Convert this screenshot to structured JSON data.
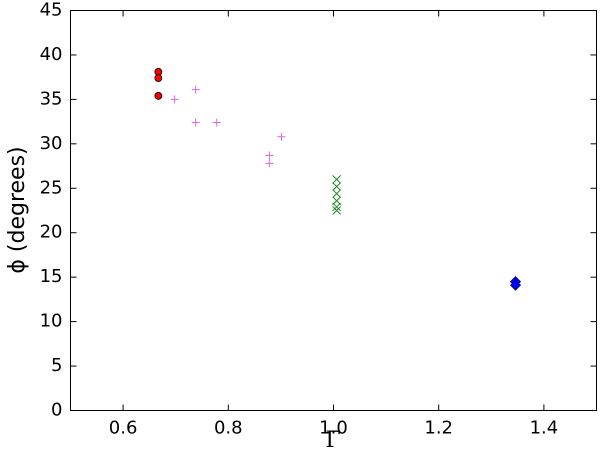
{
  "chart_data": {
    "type": "scatter",
    "x_label": "Γ",
    "y_label": "ϕ (degrees)",
    "xlim": [
      0.5,
      1.5
    ],
    "ylim": [
      0,
      45
    ],
    "xticks": [
      0.6,
      0.8,
      {
        "value": 1.0,
        "label": "1.0"
      },
      1.2,
      1.4
    ],
    "yticks": [
      0,
      5,
      10,
      15,
      20,
      25,
      30,
      35,
      40,
      45
    ],
    "grid": false,
    "series": [
      {
        "color": "#ff0000",
        "marker": "circle",
        "x": [
          0.667,
          0.667,
          0.667
        ],
        "values": [
          38.1,
          37.4,
          35.4
        ]
      },
      {
        "color": "#dd66dd",
        "marker": "plus",
        "x": [
          0.698,
          0.738,
          0.738,
          0.778,
          0.878,
          0.878,
          0.901
        ],
        "values": [
          35.0,
          36.1,
          32.4,
          32.4,
          28.7,
          27.8,
          30.8
        ]
      },
      {
        "color": "#228b22",
        "marker": "cross",
        "x": [
          1.006,
          1.006,
          1.006,
          1.006,
          1.006,
          1.006
        ],
        "values": [
          26.0,
          25.2,
          24.4,
          23.6,
          22.9,
          22.5
        ]
      },
      {
        "color": "#0000ff",
        "marker": "diamond",
        "x": [
          1.346,
          1.346
        ],
        "values": [
          14.5,
          14.1
        ]
      }
    ]
  }
}
